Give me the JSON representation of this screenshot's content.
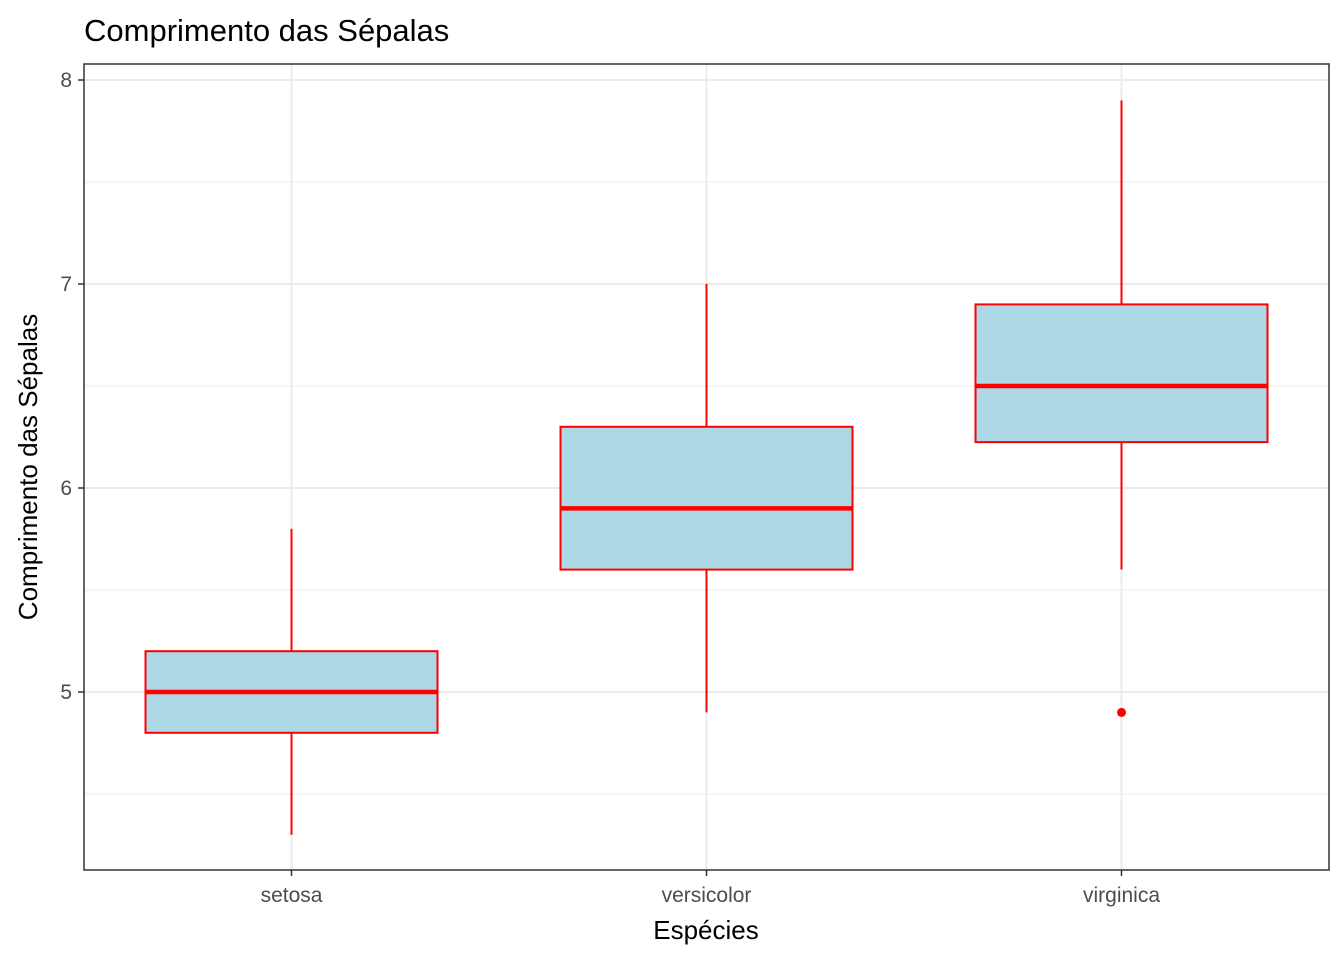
{
  "chart_data": {
    "type": "boxplot",
    "title": "Comprimento das Sépalas",
    "xlabel": "Espécies",
    "ylabel": "Comprimento das Sépalas",
    "categories": [
      "setosa",
      "versicolor",
      "virginica"
    ],
    "ylim": [
      4.2,
      8.05
    ],
    "yticks": [
      5,
      6,
      7,
      8
    ],
    "grid": true,
    "legend": "none",
    "colors": {
      "box_fill": "#add8e6",
      "box_line": "#ff0000",
      "grid": "#ebebeb",
      "panel_border": "#333333"
    },
    "boxes": [
      {
        "category": "setosa",
        "lower_whisker": 4.3,
        "q1": 4.8,
        "median": 5.0,
        "q3": 5.2,
        "upper_whisker": 5.8,
        "outliers": []
      },
      {
        "category": "versicolor",
        "lower_whisker": 4.9,
        "q1": 5.6,
        "median": 5.9,
        "q3": 6.3,
        "upper_whisker": 7.0,
        "outliers": []
      },
      {
        "category": "virginica",
        "lower_whisker": 5.6,
        "q1": 6.225,
        "median": 6.5,
        "q3": 6.9,
        "upper_whisker": 7.9,
        "outliers": [
          4.9
        ]
      }
    ]
  }
}
